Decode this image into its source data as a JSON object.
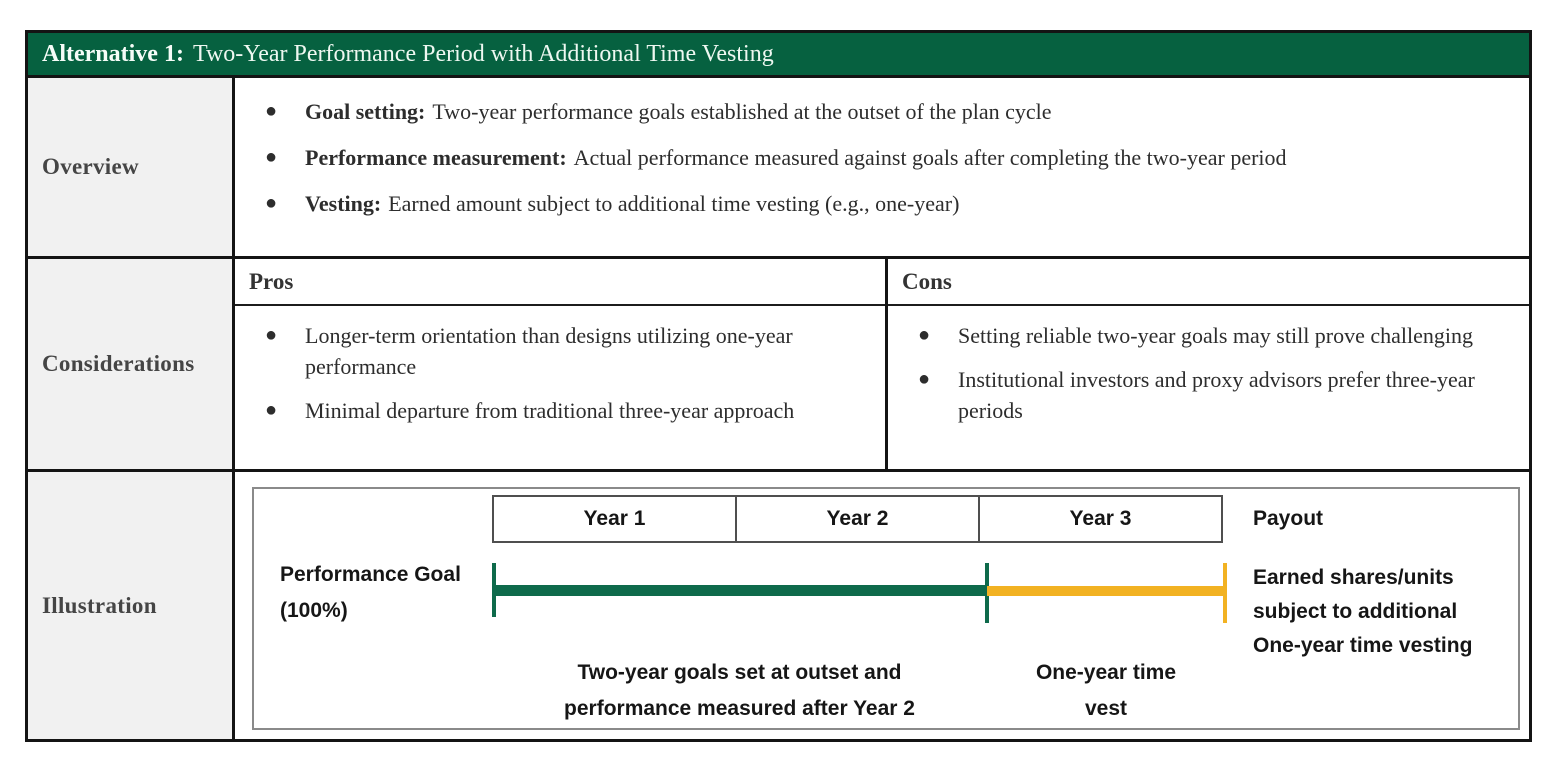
{
  "header": {
    "label": "Alternative 1:",
    "title": "Two-Year Performance Period with Additional Time Vesting",
    "bar_color": "#066140"
  },
  "overview": {
    "label": "Overview",
    "bullets": [
      {
        "lead": "Goal setting:",
        "text": "Two-year performance goals established at the outset of the plan cycle"
      },
      {
        "lead": "Performance measurement:",
        "text": "Actual performance measured against goals after completing the two-year period"
      },
      {
        "lead": "Vesting:",
        "text": "Earned amount subject to additional time vesting (e.g., one-year)"
      }
    ]
  },
  "considerations": {
    "label": "Considerations",
    "pros": {
      "header": "Pros",
      "bullets": [
        "Longer-term orientation than designs utilizing one-year performance",
        "Minimal departure from traditional three-year approach"
      ]
    },
    "cons": {
      "header": "Cons",
      "bullets": [
        "Setting reliable two-year goals may still prove challenging",
        "Institutional investors and proxy advisors prefer three-year periods"
      ]
    }
  },
  "illustration": {
    "label": "Illustration",
    "timeline": {
      "year_headers": [
        "Year 1",
        "Year 2",
        "Year 3"
      ],
      "payout_header": "Payout",
      "axis_label": "Performance Goal (100%)",
      "performance_caption": "Two-year goals set at outset and performance measured after Year 2",
      "vest_caption": "One-year time vest",
      "payout_caption": "Earned shares/units subject to additional One-year time vesting",
      "performance_span_years": 2,
      "vest_span_years": 1,
      "colors": {
        "performance_bar": "#0e6a4b",
        "vest_bar": "#f2b222"
      }
    }
  }
}
